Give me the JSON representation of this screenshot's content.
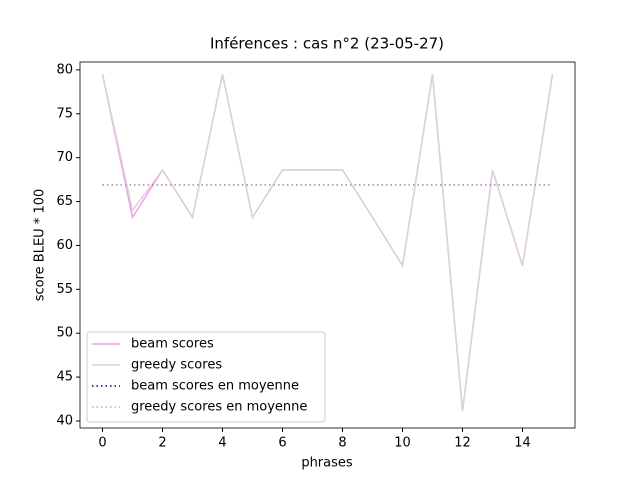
{
  "chart_data": {
    "type": "line",
    "title": "Inférences : cas n°2 (23-05-27)",
    "xlabel": "phrases",
    "ylabel": "score BLEU * 100",
    "x": [
      0,
      1,
      2,
      3,
      4,
      5,
      6,
      7,
      8,
      9,
      10,
      11,
      12,
      13,
      14,
      15
    ],
    "series": [
      {
        "name": "beam scores",
        "color": "#f49cf0",
        "style": "solid",
        "values": [
          79.5,
          63.2,
          68.6,
          63.2,
          79.5,
          63.2,
          68.6,
          68.6,
          68.6,
          63.2,
          57.7,
          79.5,
          41.1,
          68.6,
          57.7,
          79.5
        ]
      },
      {
        "name": "greedy scores",
        "color": "#dcd3d8",
        "style": "solid",
        "values": [
          79.5,
          64.0,
          68.6,
          63.2,
          79.5,
          63.2,
          68.6,
          68.6,
          68.6,
          63.2,
          57.7,
          79.5,
          41.1,
          68.6,
          57.7,
          79.5
        ]
      },
      {
        "name": "beam scores en moyenne",
        "color": "#000080",
        "style": "dotted",
        "x": [
          0,
          15
        ],
        "values": [
          66.9,
          66.9
        ]
      },
      {
        "name": "greedy scores en moyenne",
        "color": "#c8a2c8",
        "style": "dotted",
        "x": [
          0,
          15
        ],
        "values": [
          66.9,
          66.9
        ]
      }
    ],
    "xlim": [
      -0.75,
      15.75
    ],
    "xticks": [
      0,
      2,
      4,
      6,
      8,
      10,
      12,
      14
    ],
    "ylim": [
      39.2,
      80.9
    ],
    "yticks": [
      40,
      45,
      50,
      55,
      60,
      65,
      70,
      75,
      80
    ],
    "legend": "lower left"
  }
}
